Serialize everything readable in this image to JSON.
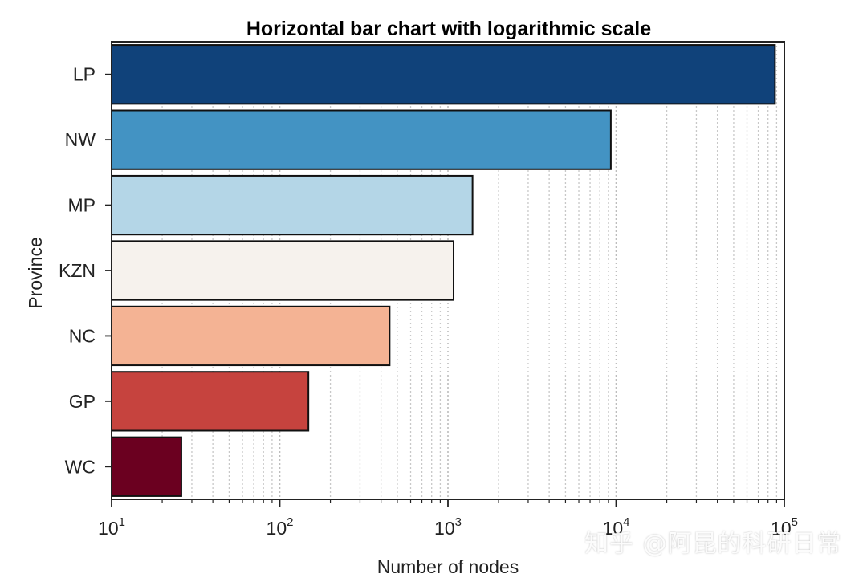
{
  "chart_data": {
    "type": "bar",
    "orientation": "horizontal",
    "title": "Horizontal bar chart with logarithmic scale",
    "xlabel": "Number of nodes",
    "ylabel": "Province",
    "xscale": "log",
    "xlim": [
      10,
      100000
    ],
    "xticks": [
      {
        "base": "10",
        "exp": "1"
      },
      {
        "base": "10",
        "exp": "2"
      },
      {
        "base": "10",
        "exp": "3"
      },
      {
        "base": "10",
        "exp": "4"
      },
      {
        "base": "10",
        "exp": "5"
      }
    ],
    "grid": "vertical dotted minor and major",
    "categories": [
      "LP",
      "NW",
      "MP",
      "KZN",
      "NC",
      "GP",
      "WC"
    ],
    "values": [
      88000,
      9300,
      1400,
      1080,
      450,
      148,
      26
    ],
    "colors": [
      "#10427a",
      "#4393c3",
      "#b4d6e7",
      "#f6f2ed",
      "#f4b394",
      "#c6433e",
      "#6b0020"
    ]
  },
  "watermark": "知乎 @阿昆的科研日常"
}
